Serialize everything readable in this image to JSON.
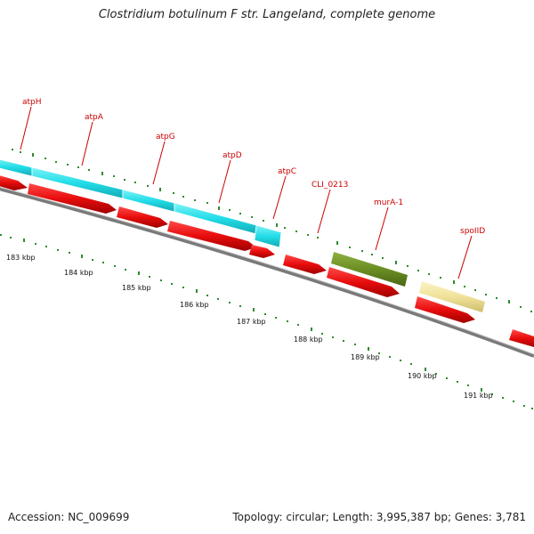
{
  "title": "Clostridium botulinum F str. Langeland, complete genome",
  "footer": {
    "accession": "Accession: NC_009699",
    "topology": "Topology: circular; Length: 3,995,387 bp; Genes: 3,781"
  },
  "colors": {
    "cds_red": "#ee1111",
    "cyan_feature": "#22dde8",
    "olive_feature": "#6b8e23",
    "pale_yellow_feature": "#f0e29a",
    "backbone_gray": "#7a7a7a",
    "tick_green": "#2e8b2e",
    "label_red": "#cc0000"
  },
  "gene_labels": [
    {
      "id": "atpH",
      "text": "atpH"
    },
    {
      "id": "atpA",
      "text": "atpA"
    },
    {
      "id": "atpG",
      "text": "atpG"
    },
    {
      "id": "atpD",
      "text": "atpD"
    },
    {
      "id": "atpC",
      "text": "atpC"
    },
    {
      "id": "cli0213",
      "text": "CLI_0213"
    },
    {
      "id": "murA1",
      "text": "murA-1"
    },
    {
      "id": "spoIID",
      "text": "spoIID"
    }
  ],
  "kbp_labels": [
    "183 kbp",
    "184 kbp",
    "185 kbp",
    "186 kbp",
    "187 kbp",
    "188 kbp",
    "189 kbp",
    "190 kbp",
    "191 kbp"
  ]
}
